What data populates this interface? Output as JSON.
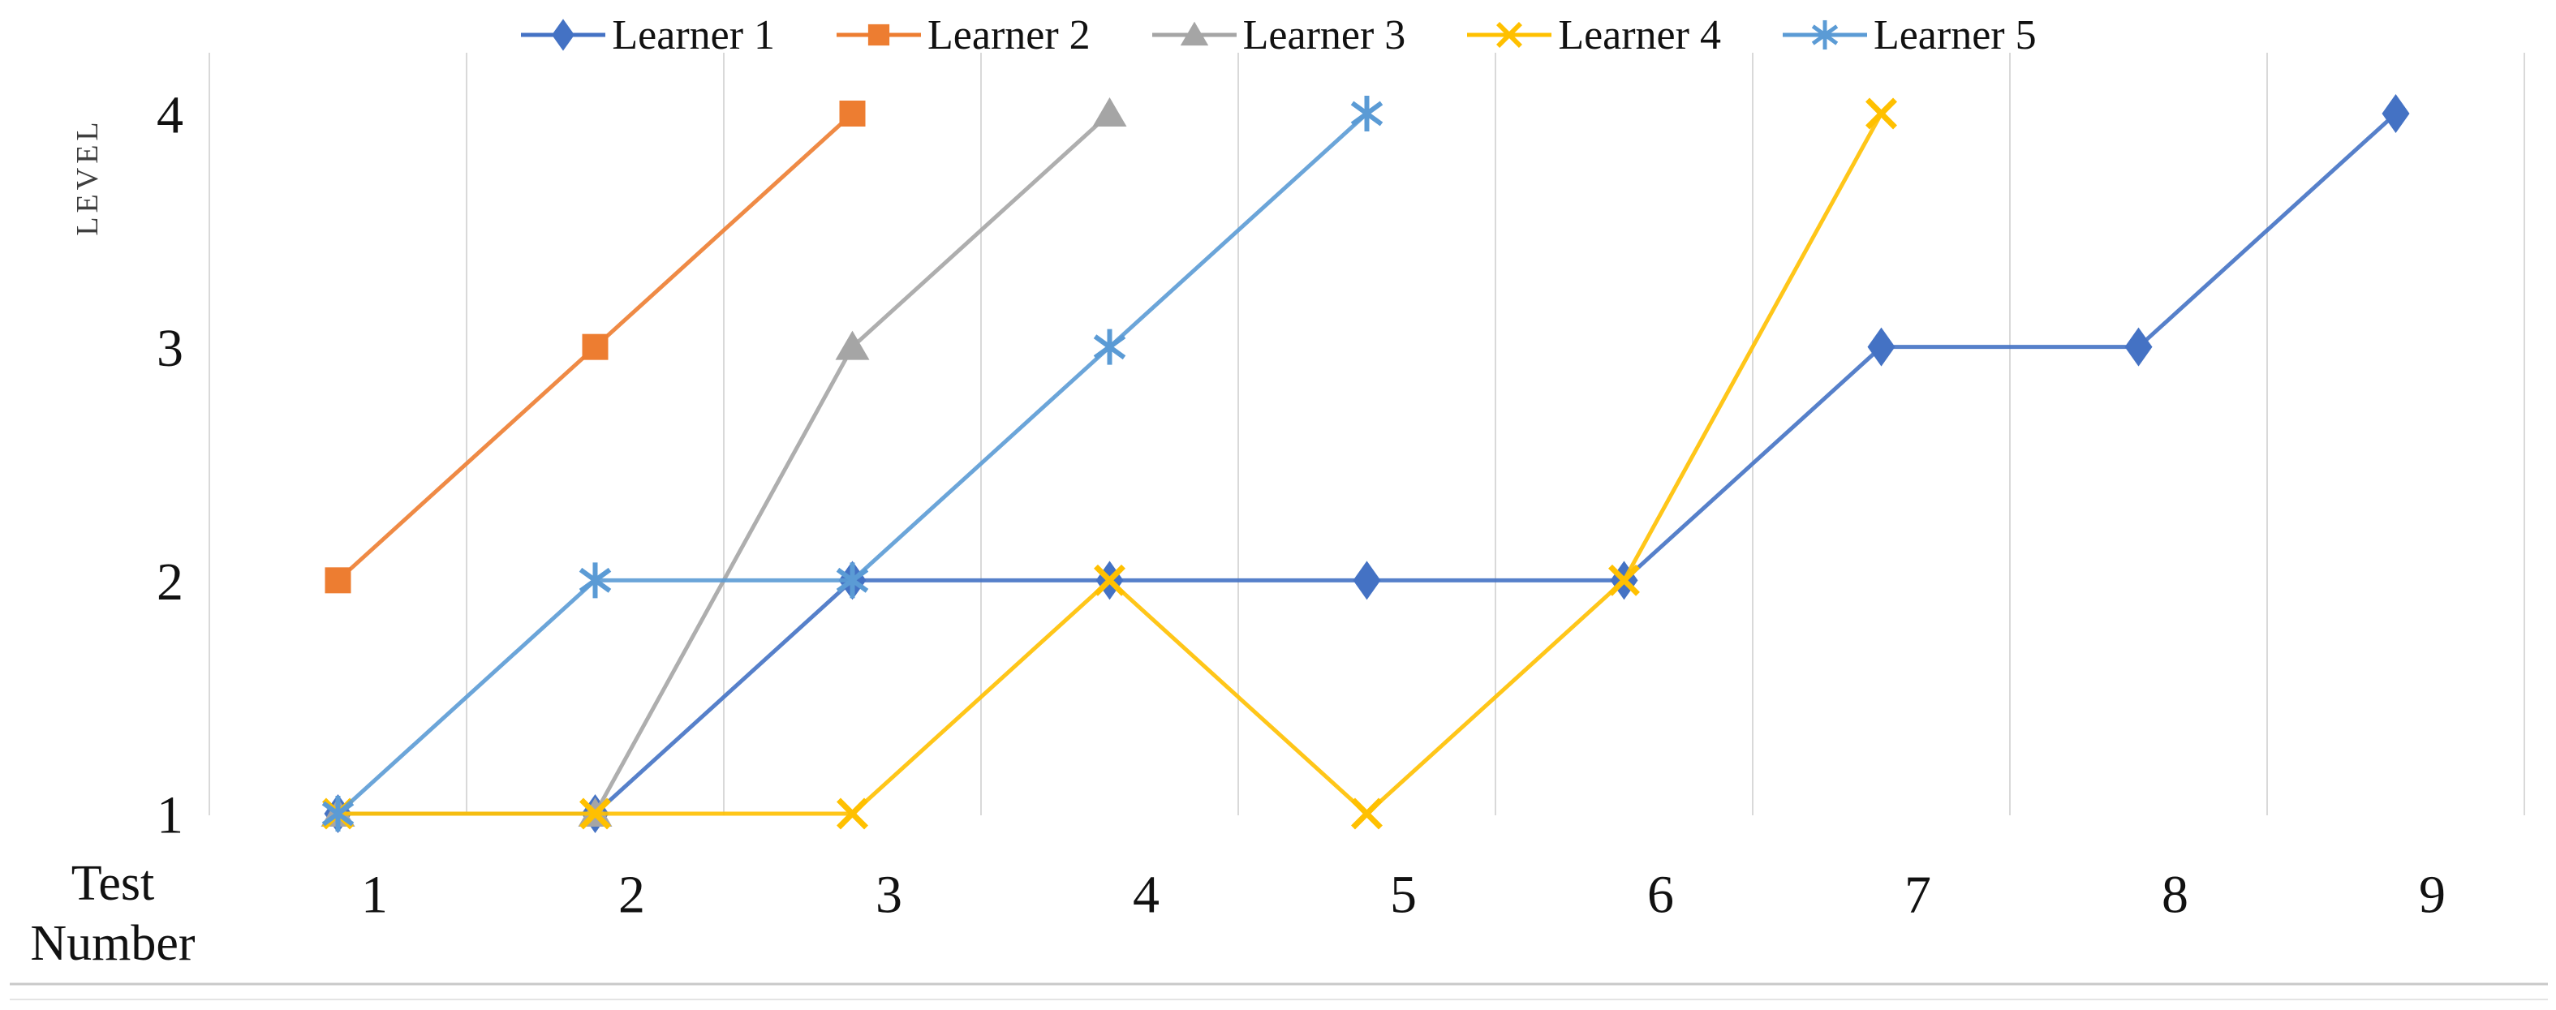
{
  "legend": {
    "items": [
      {
        "label": "Learner 1",
        "marker": "diamond",
        "color": "#4472C4"
      },
      {
        "label": "Learner 2",
        "marker": "square",
        "color": "#ED7D31"
      },
      {
        "label": "Learner 3",
        "marker": "triangle",
        "color": "#A5A5A5"
      },
      {
        "label": "Learner 4",
        "marker": "x",
        "color": "#FFC000"
      },
      {
        "label": "Learner 5",
        "marker": "asterisk",
        "color": "#5B9BD5"
      }
    ]
  },
  "chart_data": {
    "type": "line",
    "title": "",
    "categories": [
      "1",
      "2",
      "3",
      "4",
      "5",
      "6",
      "7",
      "8",
      "9"
    ],
    "xlabel": "Test Number",
    "ylabel": "LEVEL",
    "yticks": [
      "1",
      "2",
      "3",
      "4"
    ],
    "ylim": [
      1,
      4
    ],
    "grid": "vertical-only",
    "legend_position": "top-center",
    "series": [
      {
        "name": "Learner 1",
        "marker": "diamond",
        "color": "#4472C4",
        "x": [
          1,
          2,
          3,
          4,
          5,
          6,
          7,
          8,
          9
        ],
        "values": [
          1,
          1,
          2,
          2,
          2,
          2,
          3,
          3,
          4
        ]
      },
      {
        "name": "Learner 2",
        "marker": "square",
        "color": "#ED7D31",
        "x": [
          1,
          2,
          3
        ],
        "values": [
          2,
          3,
          4
        ]
      },
      {
        "name": "Learner 3",
        "marker": "triangle",
        "color": "#A5A5A5",
        "x": [
          1,
          2,
          3,
          4
        ],
        "values": [
          1,
          1,
          3,
          4
        ]
      },
      {
        "name": "Learner 4",
        "marker": "x",
        "color": "#FFC000",
        "x": [
          1,
          2,
          3,
          4,
          5,
          6,
          7
        ],
        "values": [
          1,
          1,
          1,
          2,
          1,
          2,
          4
        ]
      },
      {
        "name": "Learner 5",
        "marker": "asterisk",
        "color": "#5B9BD5",
        "x": [
          1,
          2,
          3,
          4,
          5
        ],
        "values": [
          1,
          2,
          2,
          3,
          4
        ]
      }
    ],
    "axis": {
      "x_label_lines": [
        "Test",
        "Number"
      ],
      "y_axis_title": "LEVEL"
    }
  },
  "colors": {
    "gridline": "#D9D9D9",
    "tick_text": "#111111",
    "axis_title_text": "#3f3f3f",
    "bottom_rule": "#C9C9C9",
    "bottom_rule_faint": "#E4E4E4"
  }
}
